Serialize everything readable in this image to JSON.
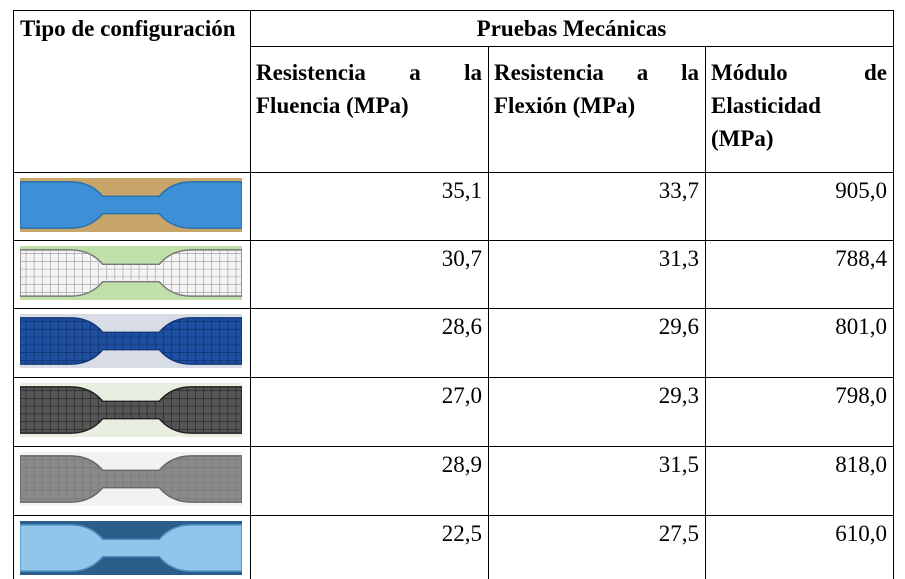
{
  "table": {
    "header": {
      "config": "Tipo de configuración",
      "group": "Pruebas Mecánicas",
      "columns": [
        "Resistencia a la Fluencia (MPa)",
        "Resistencia a la Flexión (MPa)",
        "Módulo de Elasticidad (MPa)"
      ]
    },
    "rows": [
      [
        "35,1",
        "33,7",
        "905,0"
      ],
      [
        "30,7",
        "31,3",
        "788,4"
      ],
      [
        "28,6",
        "29,6",
        "801,0"
      ],
      [
        "27,0",
        "29,3",
        "798,0"
      ],
      [
        "28,9",
        "31,5",
        "818,0"
      ],
      [
        "22,5",
        "27,5",
        "610,0"
      ]
    ]
  }
}
